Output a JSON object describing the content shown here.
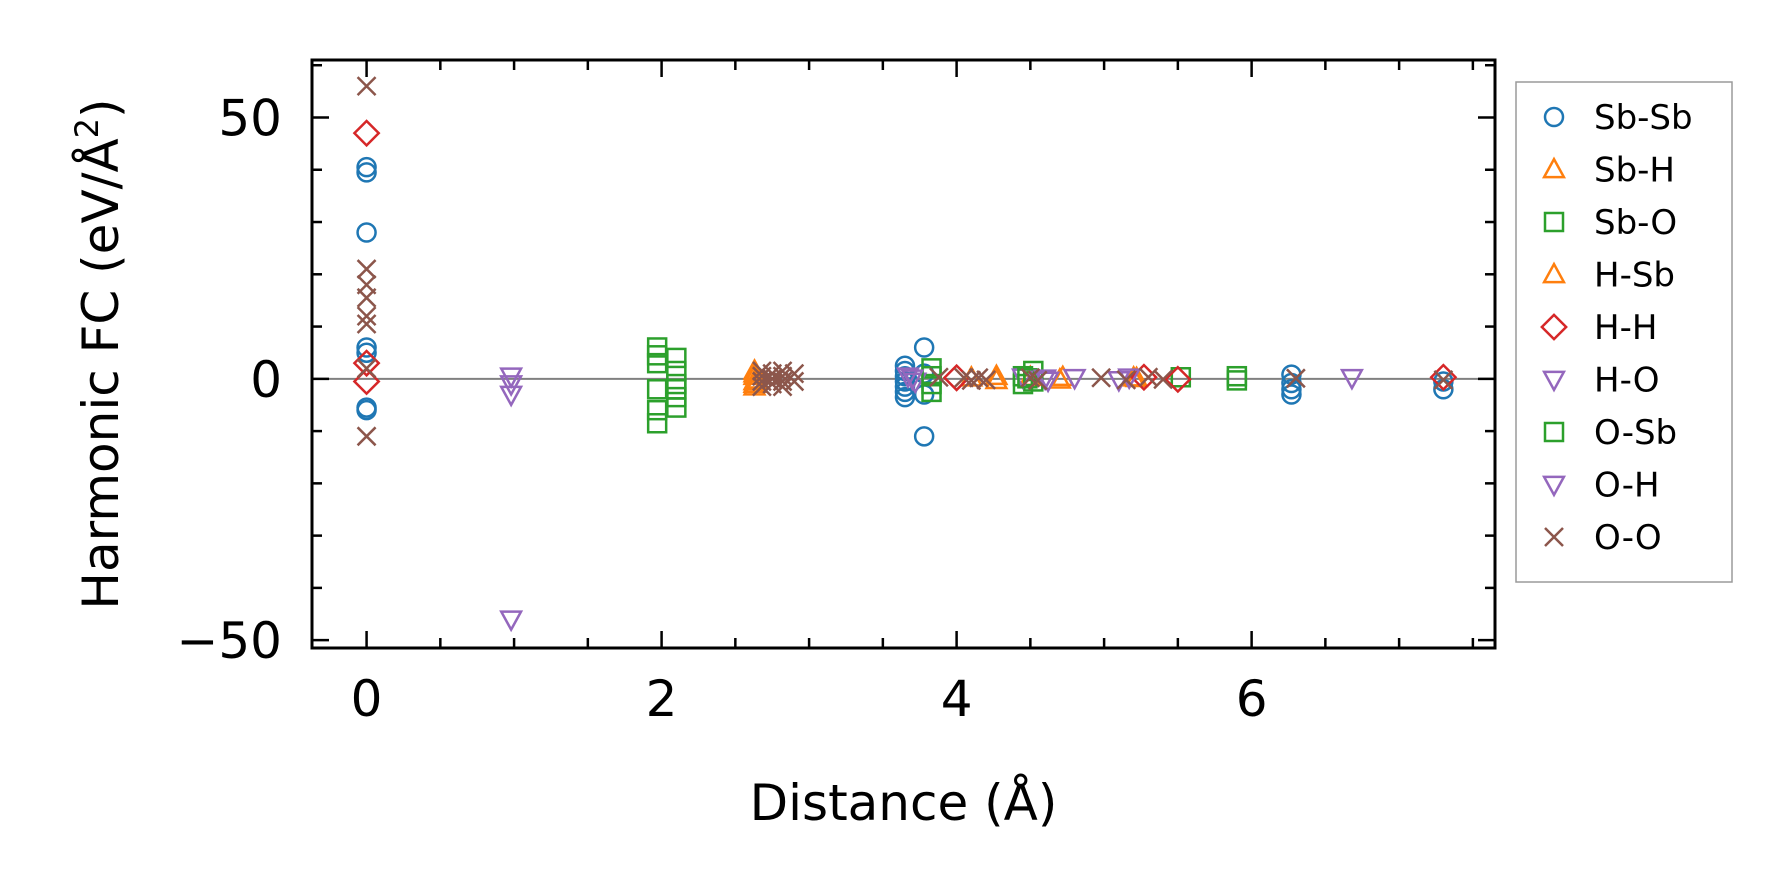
{
  "chart_data": {
    "type": "scatter",
    "title": "",
    "xlabel": "Distance (Å)",
    "ylabel_main": "Harmonic FC (eV/Å",
    "ylabel_sup": "2",
    "ylabel_close": ")",
    "xlim": [
      -0.37,
      7.65
    ],
    "ylim": [
      -51.5,
      61
    ],
    "xticks": [
      0,
      2,
      4,
      6
    ],
    "xtick_labels": [
      "0",
      "2",
      "4",
      "6"
    ],
    "yticks": [
      -50,
      0,
      50
    ],
    "ytick_labels": [
      "−50",
      "0",
      "50"
    ],
    "grid": false,
    "reference_line_y": 0,
    "legend_position": "outside-right",
    "series": [
      {
        "name": "Sb-Sb",
        "marker": "circle",
        "color": "#1f77b4",
        "points": [
          [
            0,
            40.5
          ],
          [
            0,
            39.5
          ],
          [
            0,
            28
          ],
          [
            0,
            6
          ],
          [
            0,
            5
          ],
          [
            0,
            -6
          ],
          [
            0,
            -5.5
          ],
          [
            3.65,
            2.5
          ],
          [
            3.65,
            1.5
          ],
          [
            3.65,
            0.5
          ],
          [
            3.65,
            -0.5
          ],
          [
            3.65,
            -1.5
          ],
          [
            3.65,
            -2.5
          ],
          [
            3.65,
            -3.5
          ],
          [
            3.78,
            6
          ],
          [
            3.78,
            1
          ],
          [
            3.78,
            -3
          ],
          [
            3.78,
            -11
          ],
          [
            6.27,
            0.8
          ],
          [
            6.27,
            -0.8
          ],
          [
            6.27,
            -2
          ],
          [
            6.27,
            -3
          ],
          [
            7.3,
            -0.5
          ],
          [
            7.3,
            -2
          ]
        ]
      },
      {
        "name": "Sb-H",
        "marker": "triangle-up",
        "color": "#ff7f0e",
        "points": [
          [
            2.63,
            1.5
          ],
          [
            2.63,
            0.5
          ],
          [
            2.63,
            -0.5
          ],
          [
            2.63,
            -1.5
          ],
          [
            2.65,
            -0.2
          ],
          [
            4.1,
            0.2
          ],
          [
            4.27,
            -0.3
          ],
          [
            4.5,
            0.3
          ],
          [
            4.7,
            -0.2
          ],
          [
            5.2,
            0.2
          ]
        ]
      },
      {
        "name": "Sb-O",
        "marker": "square",
        "color": "#2ca02c",
        "points": [
          [
            1.97,
            6
          ],
          [
            1.97,
            3
          ],
          [
            1.97,
            -2
          ],
          [
            1.97,
            -6
          ],
          [
            1.97,
            -8.5
          ],
          [
            2.1,
            4
          ],
          [
            2.1,
            1.5
          ],
          [
            2.1,
            -1
          ],
          [
            2.1,
            -3.5
          ],
          [
            2.1,
            -5.5
          ],
          [
            3.83,
            2
          ],
          [
            3.83,
            -1
          ],
          [
            3.83,
            -2.5
          ],
          [
            4.45,
            0.5
          ],
          [
            4.45,
            -1
          ],
          [
            4.52,
            1.5
          ],
          [
            4.52,
            -0.5
          ],
          [
            5.52,
            0.3
          ],
          [
            5.9,
            0.5
          ],
          [
            5.9,
            -0.3
          ]
        ]
      },
      {
        "name": "H-Sb",
        "marker": "triangle-up",
        "color": "#ff7f0e",
        "points": [
          [
            2.63,
            1
          ],
          [
            2.63,
            -1
          ],
          [
            4.27,
            0.5
          ],
          [
            4.72,
            0.3
          ],
          [
            5.22,
            0.1
          ]
        ]
      },
      {
        "name": "H-H",
        "marker": "diamond",
        "color": "#d62728",
        "points": [
          [
            0,
            47
          ],
          [
            0,
            3
          ],
          [
            0,
            -0.5
          ],
          [
            4.0,
            0.2
          ],
          [
            5.27,
            0.3
          ],
          [
            5.5,
            -0.1
          ],
          [
            7.3,
            0.3
          ]
        ]
      },
      {
        "name": "H-O",
        "marker": "triangle-down",
        "color": "#9467bd",
        "points": [
          [
            0.98,
            0.5
          ],
          [
            0.98,
            -3
          ],
          [
            0.98,
            -46
          ],
          [
            3.67,
            0.5
          ],
          [
            3.72,
            -0.5
          ],
          [
            4.45,
            0.3
          ],
          [
            4.62,
            -0.3
          ],
          [
            4.8,
            0.2
          ],
          [
            5.17,
            0.3
          ],
          [
            6.68,
            0.2
          ]
        ]
      },
      {
        "name": "O-Sb",
        "marker": "square",
        "color": "#2ca02c",
        "points": [
          [
            1.97,
            4.5
          ],
          [
            2.1,
            -2
          ],
          [
            3.83,
            0.5
          ],
          [
            4.48,
            0.1
          ]
        ]
      },
      {
        "name": "O-H",
        "marker": "triangle-down",
        "color": "#9467bd",
        "points": [
          [
            0.98,
            -1
          ],
          [
            3.7,
            0.1
          ],
          [
            4.6,
            0.1
          ],
          [
            5.1,
            -0.2
          ]
        ]
      },
      {
        "name": "O-O",
        "marker": "x",
        "color": "#8c564b",
        "points": [
          [
            0,
            56
          ],
          [
            0,
            21
          ],
          [
            0,
            18
          ],
          [
            0,
            15.5
          ],
          [
            0,
            12
          ],
          [
            0,
            10.5
          ],
          [
            0,
            2
          ],
          [
            0,
            -11
          ],
          [
            2.68,
            1.5
          ],
          [
            2.68,
            0.5
          ],
          [
            2.68,
            -0.5
          ],
          [
            2.68,
            -1.5
          ],
          [
            2.75,
            1
          ],
          [
            2.75,
            0
          ],
          [
            2.75,
            -1
          ],
          [
            2.82,
            1.5
          ],
          [
            2.82,
            0.5
          ],
          [
            2.82,
            -0.5
          ],
          [
            2.82,
            -1.5
          ],
          [
            2.9,
            1
          ],
          [
            2.9,
            -0.5
          ],
          [
            3.88,
            0.3
          ],
          [
            4.05,
            0.2
          ],
          [
            4.1,
            -0.3
          ],
          [
            4.15,
            0.2
          ],
          [
            4.2,
            -0.2
          ],
          [
            4.5,
            0.2
          ],
          [
            4.55,
            -0.3
          ],
          [
            4.98,
            0.2
          ],
          [
            5.15,
            -0.2
          ],
          [
            5.3,
            0.3
          ],
          [
            5.4,
            -0.1
          ],
          [
            6.3,
            0.1
          ],
          [
            7.3,
            -0.2
          ]
        ]
      }
    ]
  }
}
